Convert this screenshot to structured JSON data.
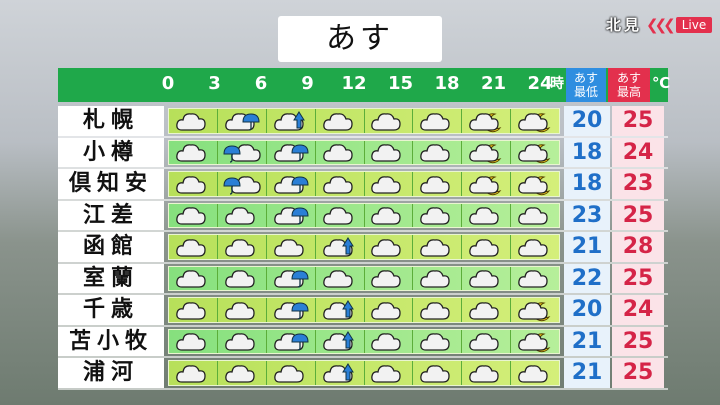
{
  "title": "あす",
  "station": {
    "city": "北見",
    "live": "Live"
  },
  "header": {
    "hours": [
      "0",
      "3",
      "6",
      "9",
      "12",
      "15",
      "18",
      "21",
      "24"
    ],
    "hour_unit": "時",
    "min_label": [
      "あす",
      "最低"
    ],
    "max_label": [
      "あす",
      "最高"
    ],
    "unit": "℃"
  },
  "colors": {
    "header": "#1fa84a",
    "min": "#2f8ee0",
    "max": "#e3304d"
  },
  "rows": [
    {
      "name": "札幌",
      "icons": [
        "cloudy",
        "cloudy-then-rain",
        "cloudy-occasional-rain",
        "cloudy",
        "cloudy",
        "cloudy",
        "cloudy-moon",
        "cloudy-moon"
      ],
      "min": "20",
      "max": "25"
    },
    {
      "name": "小樽",
      "icons": [
        "cloudy",
        "rain-then-cloudy",
        "cloudy-then-rain",
        "cloudy",
        "cloudy",
        "cloudy",
        "cloudy-moon",
        "cloudy-moon"
      ],
      "min": "18",
      "max": "24"
    },
    {
      "name": "倶知安",
      "icons": [
        "cloudy",
        "rain-then-cloudy",
        "cloudy-then-rain",
        "cloudy",
        "cloudy",
        "cloudy",
        "cloudy-moon",
        "cloudy-moon"
      ],
      "min": "18",
      "max": "23"
    },
    {
      "name": "江差",
      "icons": [
        "cloudy",
        "cloudy",
        "cloudy-then-rain",
        "cloudy",
        "cloudy",
        "cloudy",
        "cloudy",
        "cloudy"
      ],
      "min": "23",
      "max": "25"
    },
    {
      "name": "函館",
      "icons": [
        "cloudy",
        "cloudy",
        "cloudy",
        "cloudy-occasional-rain",
        "cloudy",
        "cloudy",
        "cloudy",
        "cloudy"
      ],
      "min": "21",
      "max": "28"
    },
    {
      "name": "室蘭",
      "icons": [
        "cloudy",
        "cloudy",
        "cloudy-then-rain",
        "cloudy",
        "cloudy",
        "cloudy",
        "cloudy",
        "cloudy"
      ],
      "min": "22",
      "max": "25"
    },
    {
      "name": "千歳",
      "icons": [
        "cloudy",
        "cloudy",
        "cloudy-then-rain",
        "cloudy-occasional-rain",
        "cloudy",
        "cloudy",
        "cloudy",
        "cloudy-moon"
      ],
      "min": "20",
      "max": "24"
    },
    {
      "name": "苫小牧",
      "icons": [
        "cloudy",
        "cloudy",
        "cloudy-then-rain",
        "cloudy-occasional-rain",
        "cloudy",
        "cloudy",
        "cloudy",
        "cloudy-moon"
      ],
      "min": "21",
      "max": "25"
    },
    {
      "name": "浦河",
      "icons": [
        "cloudy",
        "cloudy",
        "cloudy",
        "cloudy-occasional-rain",
        "cloudy",
        "cloudy",
        "cloudy",
        "cloudy"
      ],
      "min": "21",
      "max": "25"
    }
  ]
}
